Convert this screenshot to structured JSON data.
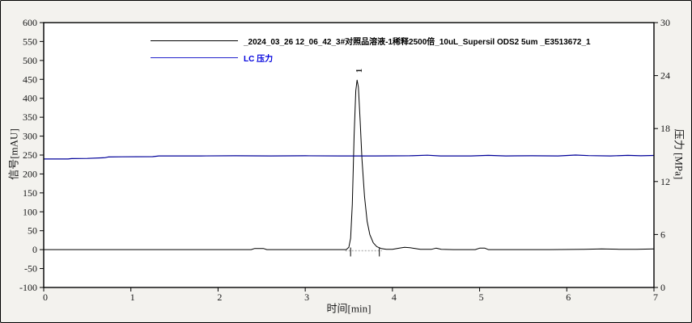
{
  "window": {
    "background": "#f3f2ee",
    "plot_background": "#ffffff",
    "frame_color": "#000000"
  },
  "chart_data": {
    "type": "line",
    "title": "",
    "xlabel": "时间[min]",
    "ylabel_left": "信号[mAU]",
    "ylabel_right": "压力 [MPa]",
    "xlim": [
      0,
      7
    ],
    "xticks": [
      0,
      1,
      2,
      3,
      4,
      5,
      6,
      7
    ],
    "ylim_left": [
      -100,
      600
    ],
    "yticks_left": [
      600,
      550,
      500,
      450,
      400,
      350,
      300,
      250,
      200,
      150,
      100,
      50,
      0,
      -50,
      -100
    ],
    "ylim_right": [
      0,
      30
    ],
    "yticks_right": [
      30,
      24,
      18,
      12,
      6,
      0
    ],
    "grid": false,
    "legend_position": "top-center-inside",
    "legend": [
      {
        "label": "_2024_03_26 12_06_42_3#对照品溶液-1稀释2500倍_10uL_Supersil ODS2 5um _E3513672_1",
        "color": "#000000",
        "text_color": "#000000"
      },
      {
        "label": "LC 压力",
        "color": "#2222cc",
        "text_color": "#0000dd"
      }
    ],
    "series": [
      {
        "name": "signal _2024_03_26 12_06_42_3# 对照品溶液-1稀释2500倍_10uL_Supersil ODS2 5um _E3513672_1",
        "axis": "left",
        "color": "#000000",
        "width": 1,
        "points": [
          [
            0.0,
            0
          ],
          [
            0.5,
            0
          ],
          [
            1.0,
            0
          ],
          [
            1.5,
            0
          ],
          [
            2.0,
            0
          ],
          [
            2.38,
            0
          ],
          [
            2.42,
            3
          ],
          [
            2.52,
            3
          ],
          [
            2.56,
            0
          ],
          [
            2.9,
            0
          ],
          [
            3.2,
            0
          ],
          [
            3.4,
            0
          ],
          [
            3.47,
            0
          ],
          [
            3.5,
            6
          ],
          [
            3.52,
            30
          ],
          [
            3.54,
            120
          ],
          [
            3.56,
            300
          ],
          [
            3.58,
            420
          ],
          [
            3.595,
            448
          ],
          [
            3.61,
            430
          ],
          [
            3.63,
            340
          ],
          [
            3.65,
            240
          ],
          [
            3.68,
            140
          ],
          [
            3.71,
            75
          ],
          [
            3.74,
            40
          ],
          [
            3.78,
            18
          ],
          [
            3.82,
            8
          ],
          [
            3.87,
            3
          ],
          [
            3.93,
            1
          ],
          [
            4.0,
            1
          ],
          [
            4.08,
            4
          ],
          [
            4.14,
            6
          ],
          [
            4.2,
            5
          ],
          [
            4.26,
            3
          ],
          [
            4.32,
            1
          ],
          [
            4.45,
            1
          ],
          [
            4.5,
            4
          ],
          [
            4.56,
            1
          ],
          [
            4.7,
            0
          ],
          [
            4.95,
            0
          ],
          [
            5.0,
            4
          ],
          [
            5.06,
            4
          ],
          [
            5.1,
            0
          ],
          [
            5.4,
            0
          ],
          [
            5.8,
            0
          ],
          [
            6.2,
            1
          ],
          [
            6.4,
            2
          ],
          [
            6.6,
            1
          ],
          [
            6.8,
            1
          ],
          [
            7.0,
            2
          ]
        ]
      },
      {
        "name": "LC 压力",
        "axis": "right",
        "color": "#000099",
        "width": 1.2,
        "points": [
          [
            0.0,
            14.55
          ],
          [
            0.28,
            14.55
          ],
          [
            0.32,
            14.6
          ],
          [
            0.5,
            14.62
          ],
          [
            0.7,
            14.7
          ],
          [
            0.74,
            14.78
          ],
          [
            0.9,
            14.8
          ],
          [
            1.25,
            14.82
          ],
          [
            1.32,
            14.9
          ],
          [
            1.8,
            14.9
          ],
          [
            2.2,
            14.92
          ],
          [
            2.6,
            14.9
          ],
          [
            3.0,
            14.92
          ],
          [
            3.4,
            14.9
          ],
          [
            3.8,
            14.9
          ],
          [
            4.2,
            14.92
          ],
          [
            4.4,
            14.98
          ],
          [
            4.55,
            14.9
          ],
          [
            4.9,
            14.9
          ],
          [
            5.1,
            14.96
          ],
          [
            5.3,
            14.9
          ],
          [
            5.6,
            14.92
          ],
          [
            5.9,
            14.9
          ],
          [
            6.1,
            15.0
          ],
          [
            6.25,
            14.94
          ],
          [
            6.5,
            14.9
          ],
          [
            6.7,
            14.96
          ],
          [
            6.85,
            14.92
          ],
          [
            7.0,
            14.95
          ]
        ]
      }
    ],
    "peaks": [
      {
        "label": "1",
        "time": 3.595,
        "apex_mAU": 448,
        "integration": {
          "baseline_from": 3.46,
          "baseline_to": 3.88,
          "baseline_mAU": -3,
          "baseline_color": "#b8b8b8",
          "marks": [
            3.52,
            3.85
          ]
        }
      }
    ]
  }
}
